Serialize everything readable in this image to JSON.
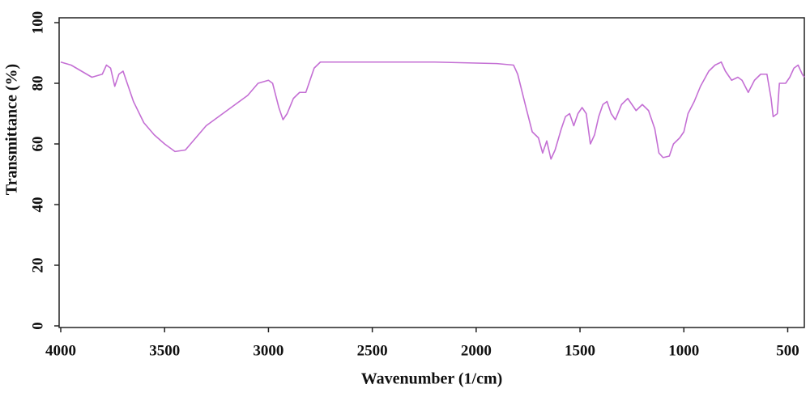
{
  "chart_data": {
    "type": "line",
    "xlabel": "Wavenumber (1/cm)",
    "ylabel": "Transmittance (%)",
    "x": [
      4000,
      3950,
      3900,
      3850,
      3800,
      3780,
      3760,
      3740,
      3720,
      3700,
      3680,
      3650,
      3600,
      3550,
      3500,
      3450,
      3400,
      3350,
      3300,
      3200,
      3100,
      3050,
      3000,
      2980,
      2950,
      2930,
      2910,
      2880,
      2850,
      2820,
      2780,
      2750,
      2500,
      2200,
      1900,
      1820,
      1800,
      1760,
      1730,
      1700,
      1680,
      1660,
      1640,
      1620,
      1590,
      1570,
      1550,
      1530,
      1510,
      1490,
      1470,
      1450,
      1430,
      1410,
      1390,
      1370,
      1350,
      1330,
      1300,
      1270,
      1250,
      1230,
      1200,
      1170,
      1140,
      1120,
      1100,
      1070,
      1050,
      1020,
      1000,
      980,
      950,
      920,
      880,
      850,
      820,
      800,
      770,
      740,
      720,
      690,
      660,
      630,
      600,
      580,
      570,
      550,
      540,
      510,
      490,
      470,
      450,
      430,
      420
    ],
    "values": [
      87,
      86,
      84,
      82,
      83,
      86,
      85,
      79,
      83,
      84,
      80,
      74,
      67,
      63,
      60,
      57.5,
      58,
      62,
      66,
      71,
      76,
      80,
      81,
      80,
      72,
      68,
      70,
      75,
      77,
      77,
      85,
      87,
      87,
      87,
      86.5,
      86,
      83,
      72,
      64,
      62,
      57,
      61,
      55,
      58,
      65,
      69,
      70,
      66,
      70,
      72,
      70,
      60,
      63,
      69,
      73,
      74,
      70,
      68,
      73,
      75,
      73,
      71,
      73,
      71,
      65,
      57,
      55.5,
      56,
      60,
      62,
      64,
      70,
      74,
      79,
      84,
      86,
      87,
      84,
      81,
      82,
      81,
      77,
      81,
      83,
      83,
      75,
      69,
      70,
      80,
      80,
      82,
      85,
      86,
      83,
      82
    ],
    "color": "#c46fd4",
    "xlim": [
      4000,
      420
    ],
    "ylim": [
      0,
      100
    ],
    "xticks": [
      4000,
      3500,
      3000,
      2500,
      2000,
      1500,
      1000,
      500
    ],
    "yticks": [
      0,
      20,
      40,
      60,
      80,
      100
    ]
  }
}
